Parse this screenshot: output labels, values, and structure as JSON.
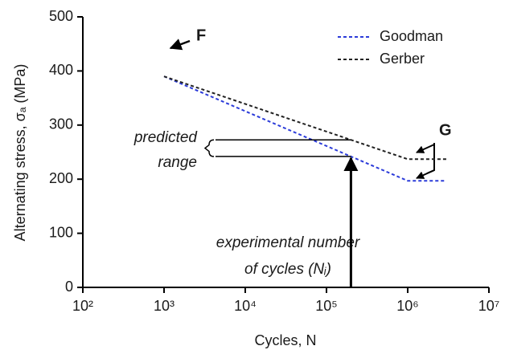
{
  "chart_data": {
    "type": "line",
    "x_label": "Cycles, N",
    "y_label": "Alternating stress, σₐ (MPa)",
    "log_x": true,
    "xlim": [
      100,
      10000000
    ],
    "xticks": [
      {
        "value": 100,
        "label": "10²"
      },
      {
        "value": 1000,
        "label": "10³"
      },
      {
        "value": 10000,
        "label": "10⁴"
      },
      {
        "value": 100000,
        "label": "10⁵"
      },
      {
        "value": 1000000,
        "label": "10⁶"
      },
      {
        "value": 10000000,
        "label": "10⁷"
      }
    ],
    "ylim": [
      0,
      500
    ],
    "yticks": [
      0,
      100,
      200,
      300,
      400,
      500
    ],
    "series": [
      {
        "name": "Goodman",
        "color": "#2b3bd9",
        "x": [
          1000,
          1000000,
          3000000
        ],
        "values": [
          390,
          197,
          197
        ]
      },
      {
        "name": "Gerber",
        "color": "#222222",
        "x": [
          1000,
          1000000,
          3000000
        ],
        "values": [
          390,
          237,
          237
        ]
      }
    ],
    "experimental_cycles": 200000,
    "annotations": {
      "F": "F",
      "G": "G",
      "predicted_1": "predicted",
      "predicted_2": "range",
      "experimental_1": "experimental number",
      "experimental_2": "of cycles (Nᵢ)"
    }
  }
}
